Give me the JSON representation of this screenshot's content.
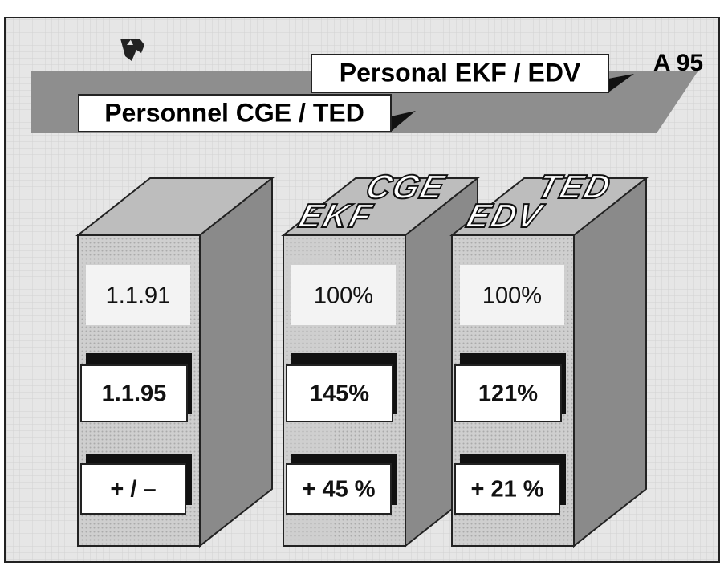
{
  "header": {
    "title_de": "Personal EKF / EDV",
    "title_fr": "Personnel CGE / TED",
    "code": "A 95"
  },
  "columns": [
    {
      "rows": [
        "1.1.91",
        "1.1.95",
        "+ / –"
      ]
    },
    {
      "labels": [
        "EKF",
        "CGE"
      ],
      "rows": [
        "100%",
        "145%",
        "+ 45 %"
      ]
    },
    {
      "labels": [
        "EDV",
        "TED"
      ],
      "rows": [
        "100%",
        "121%",
        "+ 21 %"
      ]
    }
  ]
}
